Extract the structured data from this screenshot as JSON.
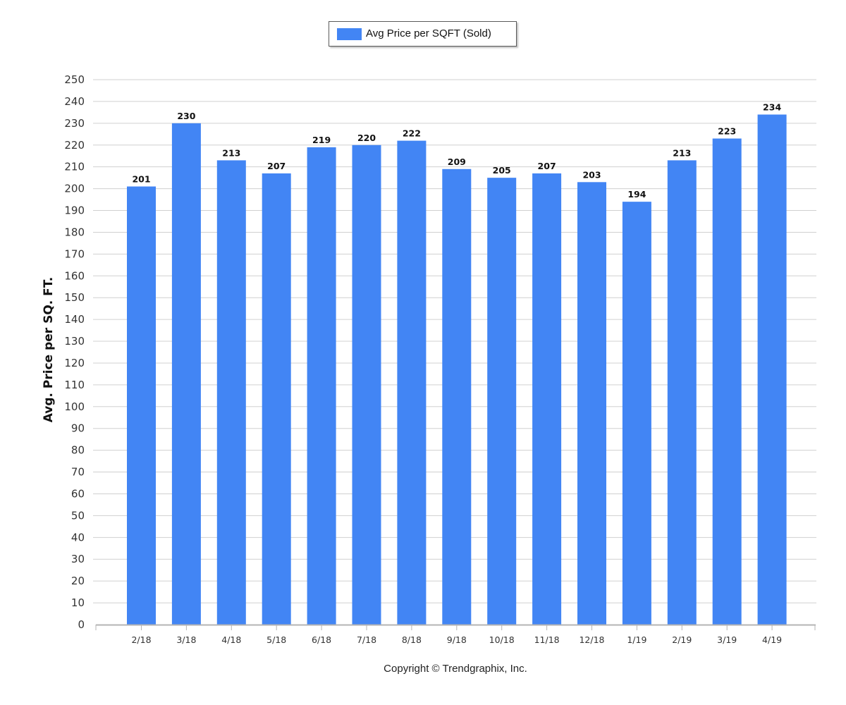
{
  "legend": {
    "label": "Avg Price per SQFT (Sold)"
  },
  "copyright": "Copyright © Trendgraphix, Inc.",
  "chart_data": {
    "type": "bar",
    "categories": [
      "2/18",
      "3/18",
      "4/18",
      "5/18",
      "6/18",
      "7/18",
      "8/18",
      "9/18",
      "10/18",
      "11/18",
      "12/18",
      "1/19",
      "2/19",
      "3/19",
      "4/19"
    ],
    "series": [
      {
        "name": "Avg Price per SQFT (Sold)",
        "values": [
          201,
          230,
          213,
          207,
          219,
          220,
          222,
          209,
          205,
          207,
          203,
          194,
          213,
          223,
          234
        ],
        "color": "#4285f4"
      }
    ],
    "title": "",
    "xlabel": "",
    "ylabel": "Avg. Price per SQ. FT.",
    "ylim": [
      0,
      250
    ],
    "y_ticks": [
      0,
      10,
      20,
      30,
      40,
      50,
      60,
      70,
      80,
      90,
      100,
      110,
      120,
      130,
      140,
      150,
      160,
      170,
      180,
      190,
      200,
      210,
      220,
      230,
      240,
      250
    ],
    "grid": true,
    "legend_position": "top-center",
    "data_labels": true
  },
  "colors": {
    "bar": "#4285f4",
    "grid": "#d0d0d0",
    "axis": "#b4b4b4"
  }
}
